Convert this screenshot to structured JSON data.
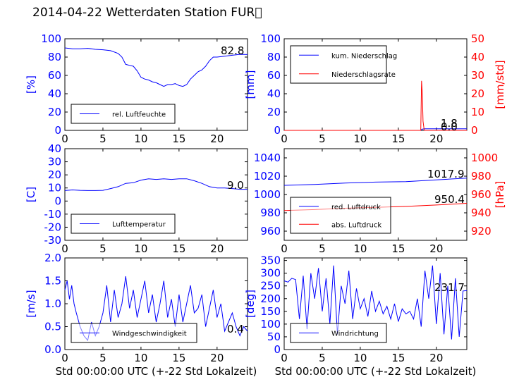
{
  "title": "2014-04-22 Wetterdaten Station FUR\u0000",
  "chart_data": [
    {
      "type": "line",
      "panel": "top-left",
      "ylabel": "[%]",
      "ylim": [
        0,
        100
      ],
      "yticks": [
        0,
        20,
        40,
        60,
        80,
        100
      ],
      "xlim": [
        0,
        24
      ],
      "xticks": [
        0,
        5,
        10,
        15,
        20
      ],
      "legend": {
        "position": "lower-left"
      },
      "annotation": "82.8",
      "series": [
        {
          "name": "rel. Luftfeuchte",
          "axis": "left",
          "color": "#0000ff",
          "x": [
            0,
            1,
            2,
            3,
            4,
            5,
            6,
            7,
            7.5,
            8,
            8.5,
            9,
            9.5,
            10,
            10.5,
            11,
            11.5,
            12,
            12.5,
            13,
            13.5,
            14,
            14.5,
            15,
            15.5,
            16,
            16.5,
            17,
            17.5,
            18,
            18.5,
            19,
            19.5,
            20,
            21,
            22,
            23,
            24
          ],
          "y": [
            90,
            89,
            89,
            89.5,
            88.5,
            88,
            87,
            84,
            80,
            72,
            71,
            70,
            65,
            58,
            56,
            55,
            53,
            52,
            50,
            48,
            50,
            50,
            51,
            49,
            48,
            50,
            56,
            60,
            64,
            66,
            70,
            76,
            80,
            80,
            81,
            82,
            83,
            82.8
          ]
        }
      ]
    },
    {
      "type": "line",
      "panel": "top-right",
      "ylabel": "[mm]",
      "ylabel_right": "[mm/std]",
      "ylim": [
        0,
        100
      ],
      "yticks": [
        0,
        20,
        40,
        60,
        80,
        100
      ],
      "ylim_right": [
        0,
        50
      ],
      "yticks_right": [
        0,
        10,
        20,
        30,
        40,
        50
      ],
      "xlim": [
        0,
        24
      ],
      "xticks": [
        0,
        5,
        10,
        15,
        20
      ],
      "legend": {
        "position": "upper-left"
      },
      "annotations": [
        "1.8",
        "0.0"
      ],
      "series": [
        {
          "name": "kum. Niederschlag",
          "axis": "left",
          "color": "#0000ff",
          "x": [
            0,
            17.9,
            18.0,
            18.2,
            18.5,
            24
          ],
          "y": [
            0,
            0,
            0.6,
            1.5,
            1.8,
            1.8
          ]
        },
        {
          "name": "Niederschlagsrate",
          "axis": "right",
          "color": "#ff0000",
          "x": [
            0,
            17.95,
            18.05,
            18.15,
            18.25,
            18.4,
            24
          ],
          "y": [
            0,
            0,
            27,
            20,
            5,
            0,
            0
          ]
        }
      ]
    },
    {
      "type": "line",
      "panel": "mid-left",
      "ylabel": "[C]",
      "ylim": [
        -30,
        40
      ],
      "yticks": [
        -30,
        -20,
        -10,
        0,
        10,
        20,
        30,
        40
      ],
      "xlim": [
        0,
        24
      ],
      "xticks": [
        0,
        5,
        10,
        15,
        20
      ],
      "legend": {
        "position": "lower-left"
      },
      "annotation": "9.0",
      "series": [
        {
          "name": "Lufttemperatur",
          "axis": "left",
          "color": "#0000ff",
          "x": [
            0,
            1,
            2,
            3,
            4,
            5,
            6,
            7,
            8,
            9,
            10,
            11,
            12,
            13,
            14,
            15,
            16,
            17,
            18,
            19,
            20,
            21,
            22,
            23,
            24
          ],
          "y": [
            8,
            8.5,
            8.2,
            8,
            8,
            8.2,
            9.5,
            11,
            13.5,
            14,
            16,
            17,
            16.5,
            17,
            16.5,
            17,
            17,
            15.5,
            13.5,
            11,
            10,
            10,
            9.5,
            9,
            9
          ]
        }
      ]
    },
    {
      "type": "line",
      "panel": "mid-right",
      "ylabel_right": "[hPa]",
      "ylim": [
        950,
        1050
      ],
      "yticks": [
        960,
        980,
        1000,
        1020,
        1040
      ],
      "ylim_right": [
        910,
        1010
      ],
      "yticks_right": [
        920,
        940,
        960,
        980,
        1000
      ],
      "xlim": [
        0,
        24
      ],
      "xticks": [
        0,
        5,
        10,
        15,
        20
      ],
      "legend": {
        "position": "lower-left"
      },
      "annotations": [
        "1017.9",
        "950.4"
      ],
      "series": [
        {
          "name": "red. Luftdruck",
          "axis": "left",
          "color": "#0000ff",
          "x": [
            0,
            4,
            8,
            12,
            16,
            20,
            24
          ],
          "y": [
            1010,
            1011,
            1012.5,
            1013.5,
            1014,
            1016,
            1017.9
          ]
        },
        {
          "name": "abs. Luftdruck",
          "axis": "right",
          "color": "#ff0000",
          "x": [
            0,
            4,
            8,
            12,
            16,
            20,
            24
          ],
          "y": [
            942.5,
            943.5,
            945,
            946,
            947,
            948.5,
            950.4
          ]
        }
      ]
    },
    {
      "type": "line",
      "panel": "bottom-left",
      "ylabel": "[m/s]",
      "xlabel": "Std 00:00:00 UTC (+-22 Std Lokalzeit)",
      "ylim": [
        0,
        2
      ],
      "yticks": [
        "0.0",
        "0.5",
        "1.0",
        "1.5",
        "2.0"
      ],
      "xlim": [
        0,
        24
      ],
      "xticks": [
        0,
        5,
        10,
        15,
        20
      ],
      "legend": {
        "position": "lower-left"
      },
      "annotation": "0.4",
      "series": [
        {
          "name": "Windgeschwindigkeit",
          "axis": "left",
          "color": "#0000ff",
          "x": [
            0,
            0.3,
            0.6,
            0.9,
            1.2,
            1.5,
            2,
            2.5,
            3,
            3.5,
            4,
            4.5,
            5,
            5.5,
            6,
            6.5,
            7,
            7.5,
            8,
            8.5,
            9,
            9.5,
            10,
            10.5,
            11,
            11.5,
            12,
            12.5,
            13,
            13.5,
            14,
            14.5,
            15,
            15.5,
            16,
            16.5,
            17,
            17.5,
            18,
            18.5,
            19,
            19.5,
            20,
            20.5,
            21,
            21.5,
            22,
            22.5,
            23,
            23.5,
            24
          ],
          "y": [
            1.3,
            1.5,
            1.1,
            1.4,
            1.0,
            0.8,
            0.5,
            0.3,
            0.2,
            0.6,
            0.3,
            0.5,
            0.8,
            1.4,
            0.6,
            1.3,
            0.7,
            1.0,
            1.6,
            0.9,
            1.3,
            0.7,
            1.1,
            1.5,
            0.8,
            1.2,
            0.6,
            1.0,
            1.5,
            0.7,
            1.1,
            0.5,
            1.2,
            0.6,
            1.0,
            1.4,
            0.8,
            0.9,
            1.2,
            0.5,
            0.9,
            1.3,
            0.7,
            1.0,
            0.4,
            0.6,
            0.8,
            0.5,
            0.3,
            0.5,
            0.4
          ]
        }
      ]
    },
    {
      "type": "line",
      "panel": "bottom-right",
      "ylabel": "[deg]",
      "xlabel": "Std 00:00:00 UTC (+-22 Std Lokalzeit)",
      "ylim": [
        0,
        360
      ],
      "yticks": [
        0,
        50,
        100,
        150,
        200,
        250,
        300,
        350
      ],
      "xlim": [
        0,
        24
      ],
      "xticks": [
        0,
        5,
        10,
        15,
        20
      ],
      "legend": {
        "position": "lower-left"
      },
      "annotation": "231.7",
      "series": [
        {
          "name": "Windrichtung",
          "axis": "left",
          "color": "#0000ff",
          "x": [
            0,
            0.5,
            1,
            1.5,
            2,
            2.5,
            3,
            3.5,
            4,
            4.5,
            5,
            5.5,
            6,
            6.5,
            7,
            7.5,
            8,
            8.5,
            9,
            9.5,
            10,
            10.5,
            11,
            11.5,
            12,
            12.5,
            13,
            13.5,
            14,
            14.5,
            15,
            15.5,
            16,
            16.5,
            17,
            17.5,
            18,
            18.5,
            19,
            19.5,
            20,
            20.5,
            21,
            21.5,
            22,
            22.5,
            23,
            23.5,
            24
          ],
          "y": [
            270,
            265,
            280,
            275,
            120,
            290,
            80,
            300,
            200,
            320,
            150,
            280,
            100,
            330,
            60,
            250,
            180,
            310,
            120,
            240,
            160,
            200,
            130,
            230,
            150,
            190,
            140,
            170,
            120,
            180,
            110,
            160,
            140,
            150,
            120,
            200,
            90,
            310,
            200,
            330,
            100,
            300,
            60,
            250,
            40,
            280,
            50,
            230,
            231.7
          ]
        }
      ]
    }
  ]
}
